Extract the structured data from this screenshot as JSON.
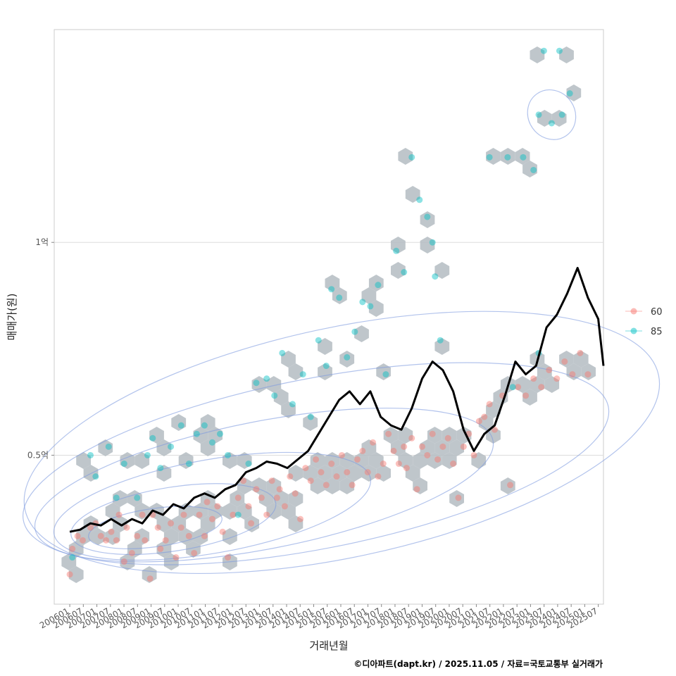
{
  "chart_data": {
    "type": "scatter",
    "xlabel": "거래년월",
    "ylabel": "매매가(원)",
    "y_unit": "억",
    "ylim": [
      0.15,
      1.5
    ],
    "xlim": [
      2005.4,
      2026.6
    ],
    "grid": true,
    "y_ticks": [
      {
        "value": 0.5,
        "label": "0.5억"
      },
      {
        "value": 1.0,
        "label": "1억"
      }
    ],
    "x_ticks": [
      "200601",
      "200607",
      "200701",
      "200707",
      "200801",
      "200807",
      "200901",
      "200907",
      "201001",
      "201007",
      "201101",
      "201107",
      "201201",
      "201207",
      "201301",
      "201307",
      "201401",
      "201407",
      "201501",
      "201507",
      "201601",
      "201607",
      "201701",
      "201707",
      "201801",
      "201807",
      "201901",
      "201907",
      "202001",
      "202007",
      "202101",
      "202107",
      "202201",
      "202207",
      "202301",
      "202307",
      "202401",
      "202407",
      "202501",
      "202507"
    ],
    "legend": {
      "position": "right",
      "entries": [
        {
          "label": "60",
          "color": "#F8766D"
        },
        {
          "label": "85",
          "color": "#00BFC4"
        }
      ]
    },
    "hexbin_color": "#b4bcc2",
    "contour_color": "#7f9be0",
    "trend_color": "#000000",
    "series": [
      {
        "name": "60",
        "color": "#F8766D",
        "points": [
          [
            2006.0,
            0.22
          ],
          [
            2006.1,
            0.28
          ],
          [
            2006.3,
            0.31
          ],
          [
            2006.5,
            0.3
          ],
          [
            2006.8,
            0.33
          ],
          [
            2007.0,
            0.34
          ],
          [
            2007.2,
            0.31
          ],
          [
            2007.4,
            0.3
          ],
          [
            2007.6,
            0.32
          ],
          [
            2007.8,
            0.3
          ],
          [
            2007.9,
            0.36
          ],
          [
            2008.1,
            0.25
          ],
          [
            2008.2,
            0.33
          ],
          [
            2008.4,
            0.27
          ],
          [
            2008.6,
            0.31
          ],
          [
            2008.8,
            0.36
          ],
          [
            2008.9,
            0.3
          ],
          [
            2009.1,
            0.21
          ],
          [
            2009.2,
            0.36
          ],
          [
            2009.4,
            0.33
          ],
          [
            2009.5,
            0.28
          ],
          [
            2009.7,
            0.3
          ],
          [
            2009.9,
            0.34
          ],
          [
            2010.1,
            0.26
          ],
          [
            2010.3,
            0.33
          ],
          [
            2010.4,
            0.36
          ],
          [
            2010.6,
            0.31
          ],
          [
            2010.8,
            0.27
          ],
          [
            2011.0,
            0.36
          ],
          [
            2011.2,
            0.31
          ],
          [
            2011.3,
            0.39
          ],
          [
            2011.5,
            0.35
          ],
          [
            2011.7,
            0.38
          ],
          [
            2011.9,
            0.32
          ],
          [
            2012.1,
            0.26
          ],
          [
            2012.3,
            0.36
          ],
          [
            2012.5,
            0.4
          ],
          [
            2012.7,
            0.44
          ],
          [
            2012.9,
            0.38
          ],
          [
            2013.0,
            0.34
          ],
          [
            2013.2,
            0.42
          ],
          [
            2013.4,
            0.4
          ],
          [
            2013.6,
            0.36
          ],
          [
            2013.8,
            0.44
          ],
          [
            2014.0,
            0.4
          ],
          [
            2014.1,
            0.42
          ],
          [
            2014.3,
            0.38
          ],
          [
            2014.5,
            0.45
          ],
          [
            2014.7,
            0.41
          ],
          [
            2014.9,
            0.35
          ],
          [
            2015.1,
            0.47
          ],
          [
            2015.3,
            0.44
          ],
          [
            2015.5,
            0.49
          ],
          [
            2015.7,
            0.46
          ],
          [
            2015.9,
            0.43
          ],
          [
            2016.1,
            0.48
          ],
          [
            2016.3,
            0.45
          ],
          [
            2016.5,
            0.5
          ],
          [
            2016.7,
            0.46
          ],
          [
            2016.9,
            0.43
          ],
          [
            2017.1,
            0.49
          ],
          [
            2017.3,
            0.51
          ],
          [
            2017.5,
            0.46
          ],
          [
            2017.7,
            0.53
          ],
          [
            2017.9,
            0.45
          ],
          [
            2018.1,
            0.48
          ],
          [
            2018.3,
            0.55
          ],
          [
            2018.5,
            0.51
          ],
          [
            2018.7,
            0.48
          ],
          [
            2018.9,
            0.52
          ],
          [
            2019.0,
            0.47
          ],
          [
            2019.2,
            0.54
          ],
          [
            2019.4,
            0.42
          ],
          [
            2019.6,
            0.52
          ],
          [
            2019.8,
            0.5
          ],
          [
            2020.0,
            0.55
          ],
          [
            2020.2,
            0.49
          ],
          [
            2020.4,
            0.52
          ],
          [
            2020.6,
            0.54
          ],
          [
            2020.8,
            0.48
          ],
          [
            2021.0,
            0.4
          ],
          [
            2021.2,
            0.52
          ],
          [
            2021.4,
            0.55
          ],
          [
            2021.6,
            0.5
          ],
          [
            2021.8,
            0.58
          ],
          [
            2022.0,
            0.59
          ],
          [
            2022.2,
            0.62
          ],
          [
            2022.4,
            0.56
          ],
          [
            2022.7,
            0.64
          ],
          [
            2023.0,
            0.43
          ],
          [
            2023.3,
            0.66
          ],
          [
            2023.6,
            0.64
          ],
          [
            2023.9,
            0.68
          ],
          [
            2024.2,
            0.66
          ],
          [
            2024.5,
            0.7
          ],
          [
            2024.8,
            0.68
          ],
          [
            2025.1,
            0.72
          ],
          [
            2025.4,
            0.69
          ],
          [
            2025.7,
            0.74
          ],
          [
            2026.0,
            0.69
          ]
        ]
      },
      {
        "name": "85",
        "color": "#00BFC4",
        "points": [
          [
            2006.1,
            0.26
          ],
          [
            2006.8,
            0.5
          ],
          [
            2007.0,
            0.45
          ],
          [
            2007.5,
            0.52
          ],
          [
            2007.8,
            0.4
          ],
          [
            2008.1,
            0.48
          ],
          [
            2008.6,
            0.4
          ],
          [
            2009.0,
            0.5
          ],
          [
            2009.2,
            0.54
          ],
          [
            2009.5,
            0.47
          ],
          [
            2009.9,
            0.52
          ],
          [
            2010.3,
            0.57
          ],
          [
            2010.6,
            0.48
          ],
          [
            2010.9,
            0.55
          ],
          [
            2011.2,
            0.57
          ],
          [
            2011.5,
            0.53
          ],
          [
            2011.8,
            0.55
          ],
          [
            2012.1,
            0.5
          ],
          [
            2012.5,
            0.36
          ],
          [
            2012.9,
            0.48
          ],
          [
            2013.2,
            0.67
          ],
          [
            2013.6,
            0.68
          ],
          [
            2013.9,
            0.64
          ],
          [
            2014.2,
            0.74
          ],
          [
            2014.6,
            0.62
          ],
          [
            2015.0,
            0.69
          ],
          [
            2015.3,
            0.59
          ],
          [
            2015.6,
            0.77
          ],
          [
            2015.9,
            0.71
          ],
          [
            2016.1,
            0.89
          ],
          [
            2016.4,
            0.87
          ],
          [
            2016.7,
            0.73
          ],
          [
            2017.0,
            0.79
          ],
          [
            2017.3,
            0.86
          ],
          [
            2017.6,
            0.85
          ],
          [
            2017.9,
            0.9
          ],
          [
            2018.2,
            0.69
          ],
          [
            2018.6,
            0.98
          ],
          [
            2018.9,
            0.93
          ],
          [
            2019.2,
            1.2
          ],
          [
            2019.5,
            1.1
          ],
          [
            2019.8,
            1.06
          ],
          [
            2020.0,
            1.0
          ],
          [
            2020.1,
            0.92
          ],
          [
            2020.3,
            0.77
          ],
          [
            2022.2,
            1.2
          ],
          [
            2022.9,
            1.2
          ],
          [
            2023.5,
            1.2
          ],
          [
            2023.9,
            1.17
          ],
          [
            2024.1,
            1.3
          ],
          [
            2024.3,
            1.45
          ],
          [
            2024.6,
            1.28
          ],
          [
            2024.9,
            1.45
          ],
          [
            2025.0,
            1.3
          ],
          [
            2025.3,
            1.35
          ],
          [
            2024.1,
            0.74
          ],
          [
            2023.1,
            0.66
          ]
        ]
      },
      {
        "name": "trend",
        "type": "line",
        "points": [
          [
            2006.0,
            0.32
          ],
          [
            2006.4,
            0.325
          ],
          [
            2006.8,
            0.34
          ],
          [
            2007.2,
            0.335
          ],
          [
            2007.6,
            0.35
          ],
          [
            2008.0,
            0.335
          ],
          [
            2008.4,
            0.35
          ],
          [
            2008.8,
            0.34
          ],
          [
            2009.2,
            0.37
          ],
          [
            2009.6,
            0.36
          ],
          [
            2010.0,
            0.385
          ],
          [
            2010.4,
            0.375
          ],
          [
            2010.8,
            0.4
          ],
          [
            2011.2,
            0.41
          ],
          [
            2011.6,
            0.4
          ],
          [
            2012.0,
            0.42
          ],
          [
            2012.4,
            0.43
          ],
          [
            2012.8,
            0.46
          ],
          [
            2013.2,
            0.47
          ],
          [
            2013.6,
            0.485
          ],
          [
            2014.0,
            0.48
          ],
          [
            2014.4,
            0.47
          ],
          [
            2014.8,
            0.49
          ],
          [
            2015.2,
            0.51
          ],
          [
            2015.6,
            0.55
          ],
          [
            2016.0,
            0.59
          ],
          [
            2016.4,
            0.63
          ],
          [
            2016.8,
            0.65
          ],
          [
            2017.2,
            0.62
          ],
          [
            2017.6,
            0.65
          ],
          [
            2018.0,
            0.59
          ],
          [
            2018.4,
            0.57
          ],
          [
            2018.8,
            0.56
          ],
          [
            2019.2,
            0.61
          ],
          [
            2019.6,
            0.68
          ],
          [
            2020.0,
            0.72
          ],
          [
            2020.4,
            0.7
          ],
          [
            2020.8,
            0.65
          ],
          [
            2021.2,
            0.56
          ],
          [
            2021.6,
            0.51
          ],
          [
            2022.0,
            0.55
          ],
          [
            2022.4,
            0.57
          ],
          [
            2022.8,
            0.64
          ],
          [
            2023.2,
            0.72
          ],
          [
            2023.6,
            0.69
          ],
          [
            2024.0,
            0.71
          ],
          [
            2024.4,
            0.8
          ],
          [
            2024.8,
            0.83
          ],
          [
            2025.2,
            0.88
          ],
          [
            2025.6,
            0.94
          ],
          [
            2026.0,
            0.87
          ],
          [
            2026.4,
            0.82
          ],
          [
            2026.6,
            0.71
          ]
        ]
      }
    ]
  },
  "caption": "©디아파트(dapt.kr) / 2025.11.05 / 자료=국토교통부 실거래가"
}
